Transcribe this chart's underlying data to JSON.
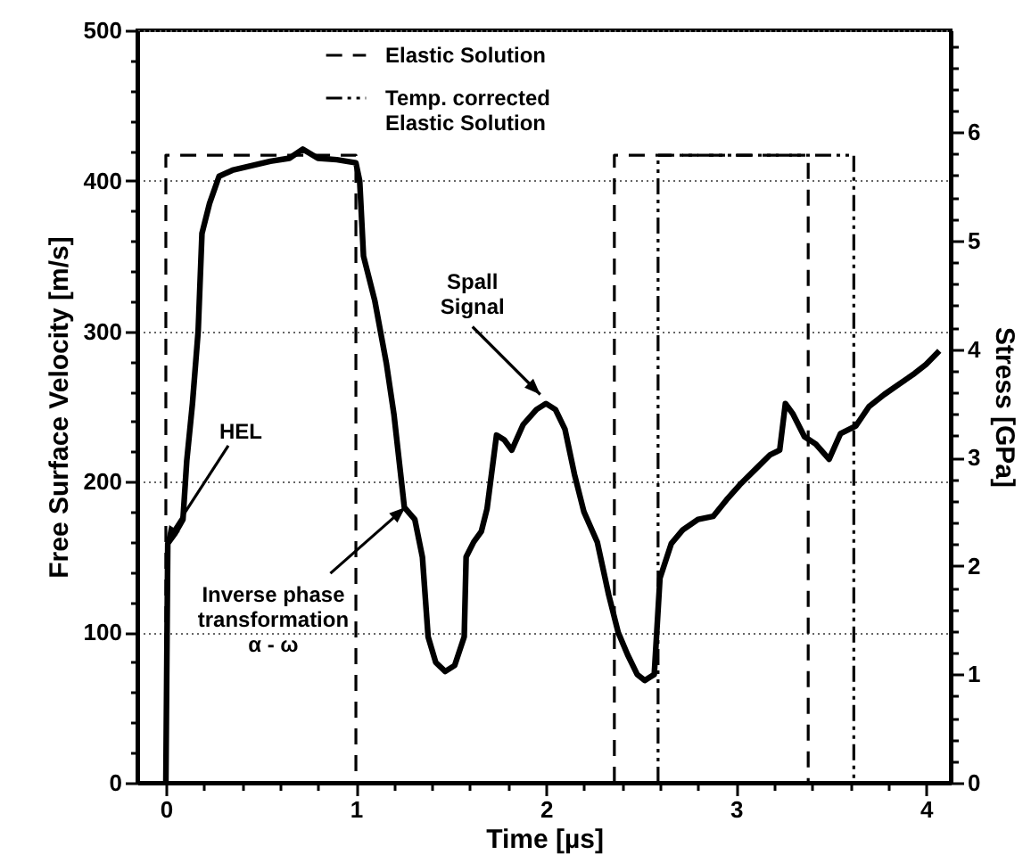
{
  "chart_data": {
    "type": "line",
    "xlabel": "Time [µs]",
    "ylabel": "Free Surface Velocity [m/s]",
    "y2label": "Stress [GPa]",
    "xlim": [
      -0.15,
      4.13
    ],
    "ylim": [
      0,
      500
    ],
    "y2lim": [
      0,
      6.94
    ],
    "xticks": [
      0,
      {
        "value": 0.2,
        "label": null
      },
      {
        "value": 0.4,
        "label": null
      },
      {
        "value": 0.6,
        "label": null
      },
      {
        "value": 0.8,
        "label": null
      },
      1,
      {
        "value": 1.2,
        "label": null
      },
      {
        "value": 1.4,
        "label": null
      },
      {
        "value": 1.6,
        "label": null
      },
      {
        "value": 1.8,
        "label": null
      },
      2,
      {
        "value": 2.2,
        "label": null
      },
      {
        "value": 2.4,
        "label": null
      },
      {
        "value": 2.6,
        "label": null
      },
      {
        "value": 2.8,
        "label": null
      },
      3,
      {
        "value": 3.2,
        "label": null
      },
      {
        "value": 3.4,
        "label": null
      },
      {
        "value": 3.6,
        "label": null
      },
      {
        "value": 3.8,
        "label": null
      },
      4
    ],
    "yticks": [
      0,
      {
        "value": 20,
        "label": null
      },
      {
        "value": 40,
        "label": null
      },
      {
        "value": 60,
        "label": null
      },
      {
        "value": 80,
        "label": null
      },
      100,
      {
        "value": 120,
        "label": null
      },
      {
        "value": 140,
        "label": null
      },
      {
        "value": 160,
        "label": null
      },
      {
        "value": 180,
        "label": null
      },
      200,
      {
        "value": 220,
        "label": null
      },
      {
        "value": 240,
        "label": null
      },
      {
        "value": 260,
        "label": null
      },
      {
        "value": 280,
        "label": null
      },
      300,
      {
        "value": 320,
        "label": null
      },
      {
        "value": 340,
        "label": null
      },
      {
        "value": 360,
        "label": null
      },
      {
        "value": 380,
        "label": null
      },
      400,
      {
        "value": 420,
        "label": null
      },
      {
        "value": 440,
        "label": null
      },
      {
        "value": 460,
        "label": null
      },
      {
        "value": 480,
        "label": null
      },
      500
    ],
    "y2ticks": [
      0,
      {
        "value": 0.2,
        "label": null
      },
      {
        "value": 0.4,
        "label": null
      },
      {
        "value": 0.6,
        "label": null
      },
      {
        "value": 0.8,
        "label": null
      },
      1,
      {
        "value": 1.2,
        "label": null
      },
      {
        "value": 1.4,
        "label": null
      },
      {
        "value": 1.6,
        "label": null
      },
      {
        "value": 1.8,
        "label": null
      },
      2,
      {
        "value": 2.2,
        "label": null
      },
      {
        "value": 2.4,
        "label": null
      },
      {
        "value": 2.6,
        "label": null
      },
      {
        "value": 2.8,
        "label": null
      },
      3,
      {
        "value": 3.2,
        "label": null
      },
      {
        "value": 3.4,
        "label": null
      },
      {
        "value": 3.6,
        "label": null
      },
      {
        "value": 3.8,
        "label": null
      },
      4,
      {
        "value": 4.2,
        "label": null
      },
      {
        "value": 4.4,
        "label": null
      },
      {
        "value": 4.6,
        "label": null
      },
      {
        "value": 4.8,
        "label": null
      },
      5,
      {
        "value": 5.2,
        "label": null
      },
      {
        "value": 5.4,
        "label": null
      },
      {
        "value": 5.6,
        "label": null
      },
      {
        "value": 5.8,
        "label": null
      },
      6,
      {
        "value": 6.2,
        "label": null
      },
      {
        "value": 6.4,
        "label": null
      },
      {
        "value": 6.6,
        "label": null
      },
      {
        "value": 6.8,
        "label": null
      }
    ],
    "grid": "y",
    "legend": "top",
    "series": [
      {
        "type": "line",
        "color": "#000000",
        "line_style": "solid",
        "x": [
          0,
          0.01,
          0.05,
          0.09,
          0.11,
          0.14,
          0.17,
          0.19,
          0.23,
          0.28,
          0.35,
          0.45,
          0.55,
          0.65,
          0.72,
          0.8,
          0.9,
          1.0,
          1.02,
          1.04,
          1.1,
          1.16,
          1.2,
          1.255,
          1.31,
          1.35,
          1.38,
          1.42,
          1.47,
          1.52,
          1.57,
          1.58,
          1.62,
          1.66,
          1.69,
          1.74,
          1.78,
          1.82,
          1.88,
          1.95,
          2.0,
          2.05,
          2.1,
          2.15,
          2.2,
          2.27,
          2.33,
          2.38,
          2.43,
          2.48,
          2.52,
          2.57,
          2.6,
          2.66,
          2.72,
          2.8,
          2.88,
          2.95,
          3.02,
          3.1,
          3.18,
          3.23,
          3.26,
          3.3,
          3.36,
          3.42,
          3.49,
          3.55,
          3.63,
          3.7,
          3.78,
          3.86,
          3.94,
          4.0,
          4.07
        ],
        "values": [
          0,
          159,
          166,
          175,
          214,
          252,
          300,
          365,
          385,
          403,
          407,
          410,
          413,
          415,
          421,
          415,
          414,
          412,
          400,
          350,
          320,
          279,
          245,
          183,
          175,
          150,
          97,
          80,
          74,
          78,
          97,
          150,
          160,
          167,
          182,
          231,
          228,
          221,
          238,
          248,
          252,
          248,
          235,
          205,
          180,
          160,
          125,
          100,
          85,
          72,
          68,
          72,
          136,
          159,
          168,
          175,
          177,
          188,
          198,
          208,
          218,
          221,
          252,
          245,
          230,
          225,
          215,
          232,
          237,
          250,
          258,
          265,
          272,
          278,
          287
        ]
      },
      {
        "name": "Elastic Solution",
        "type": "line",
        "color": "#000000",
        "line_style": "dashed",
        "x": [
          0,
          0,
          1,
          1,
          null,
          2.36,
          2.36,
          3.38,
          3.38
        ],
        "values": [
          0,
          417,
          417,
          0,
          null,
          0,
          417,
          417,
          0
        ]
      },
      {
        "name": "Temp. corrected\nElastic Solution",
        "type": "line",
        "color": "#000000",
        "line_style": "dashdot",
        "x": [
          2.59,
          2.59,
          3.62,
          3.62
        ],
        "values": [
          0,
          417,
          417,
          0
        ]
      }
    ],
    "annotations": [
      {
        "text": "HEL",
        "x": 0,
        "y": 160
      },
      {
        "text": "Inverse phase\ntransformation\nα - ω",
        "x": 1.26,
        "y": 183
      },
      {
        "text": "Spall\nSignal",
        "x": 1.97,
        "y": 258
      }
    ]
  }
}
